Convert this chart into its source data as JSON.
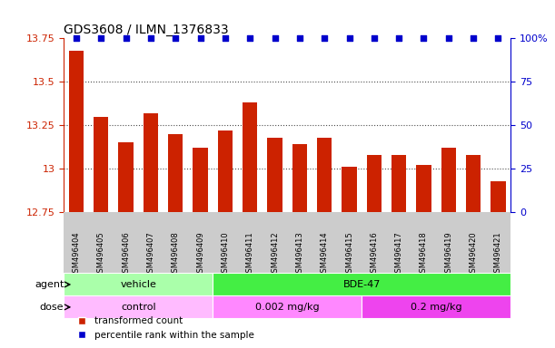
{
  "title": "GDS3608 / ILMN_1376833",
  "samples": [
    "GSM496404",
    "GSM496405",
    "GSM496406",
    "GSM496407",
    "GSM496408",
    "GSM496409",
    "GSM496410",
    "GSM496411",
    "GSM496412",
    "GSM496413",
    "GSM496414",
    "GSM496415",
    "GSM496416",
    "GSM496417",
    "GSM496418",
    "GSM496419",
    "GSM496420",
    "GSM496421"
  ],
  "values": [
    13.68,
    13.3,
    13.15,
    13.32,
    13.2,
    13.12,
    13.22,
    13.38,
    13.18,
    13.14,
    13.18,
    13.01,
    13.08,
    13.08,
    13.02,
    13.12,
    13.08,
    12.93
  ],
  "percentile_ranks": [
    100,
    100,
    100,
    100,
    100,
    100,
    100,
    100,
    100,
    100,
    100,
    100,
    100,
    100,
    100,
    100,
    100,
    100
  ],
  "bar_color": "#cc2200",
  "percentile_color": "#0000cc",
  "ymin": 12.75,
  "ymax": 13.75,
  "yticks": [
    12.75,
    13.0,
    13.25,
    13.5,
    13.75
  ],
  "ytick_labels": [
    "12.75",
    "13",
    "13.25",
    "13.5",
    "13.75"
  ],
  "right_yticks": [
    0,
    25,
    50,
    75,
    100
  ],
  "right_ytick_labels": [
    "0",
    "25",
    "50",
    "75",
    "100%"
  ],
  "agent_groups": [
    {
      "label": "vehicle",
      "start": 0,
      "end": 6,
      "color": "#aaffaa"
    },
    {
      "label": "BDE-47",
      "start": 6,
      "end": 18,
      "color": "#44ee44"
    }
  ],
  "dose_groups": [
    {
      "label": "control",
      "start": 0,
      "end": 6,
      "color": "#ffbbff"
    },
    {
      "label": "0.002 mg/kg",
      "start": 6,
      "end": 12,
      "color": "#ff88ff"
    },
    {
      "label": "0.2 mg/kg",
      "start": 12,
      "end": 18,
      "color": "#ee44ee"
    }
  ],
  "legend_items": [
    {
      "label": "transformed count",
      "color": "#cc2200"
    },
    {
      "label": "percentile rank within the sample",
      "color": "#0000cc"
    }
  ],
  "background_color": "#ffffff",
  "tick_area_color": "#cccccc"
}
